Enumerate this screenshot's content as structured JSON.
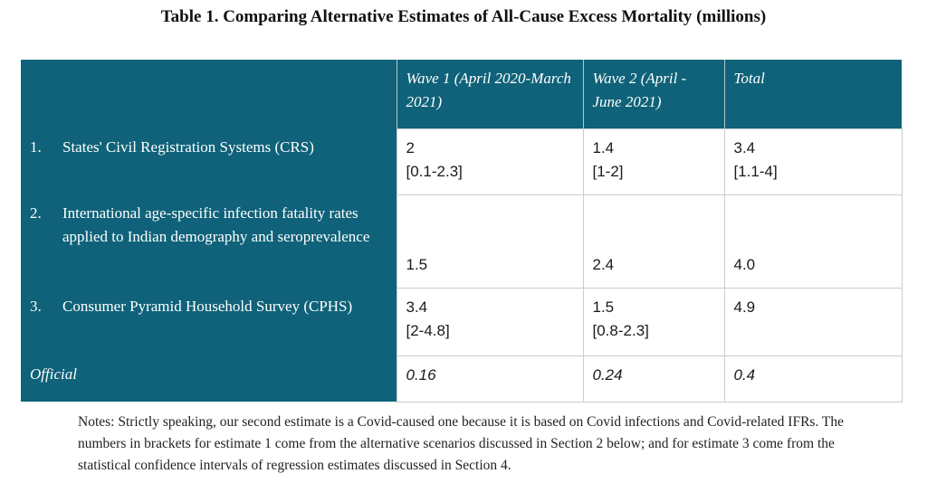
{
  "title": "Table 1. Comparing Alternative Estimates of All-Cause Excess Mortality (millions)",
  "table": {
    "headers": [
      "",
      "Wave 1 (April 2020-March 2021)",
      "Wave 2 (April -June 2021)",
      "Total"
    ],
    "rows": [
      {
        "num": "1.",
        "label": "States' Civil Registration Systems (CRS)",
        "wave1": {
          "value": "2",
          "range": "[0.1-2.3]"
        },
        "wave2": {
          "value": "1.4",
          "range": "[1-2]"
        },
        "total": {
          "value": "3.4",
          "range": "[1.1-4]"
        }
      },
      {
        "num": "2.",
        "label": "International age-specific infection fatality rates applied to Indian demography and seroprevalence",
        "wave1": {
          "value": "1.5"
        },
        "wave2": {
          "value": "2.4"
        },
        "total": {
          "value": "4.0"
        }
      },
      {
        "num": "3.",
        "label": "Consumer Pyramid Household Survey (CPHS)",
        "wave1": {
          "value": "3.4",
          "range": "[2-4.8]"
        },
        "wave2": {
          "value": "1.5",
          "range": "[0.8-2.3]"
        },
        "total": {
          "value": "4.9"
        }
      },
      {
        "label": "Official",
        "wave1": {
          "value": "0.16"
        },
        "wave2": {
          "value": "0.24"
        },
        "total": {
          "value": "0.4"
        }
      }
    ]
  },
  "notes": "Notes: Strictly speaking, our second estimate is a Covid-caused one because it is based on Covid infections and Covid-related IFRs. The numbers in brackets for estimate 1 come from the alternative scenarios discussed in Section 2 below; and for estimate 3 come from the statistical confidence intervals of regression estimates discussed in Section 4.",
  "colors": {
    "header_bg": "#0f6279",
    "header_text": "#ffffff",
    "border": "#c7cdd0"
  }
}
